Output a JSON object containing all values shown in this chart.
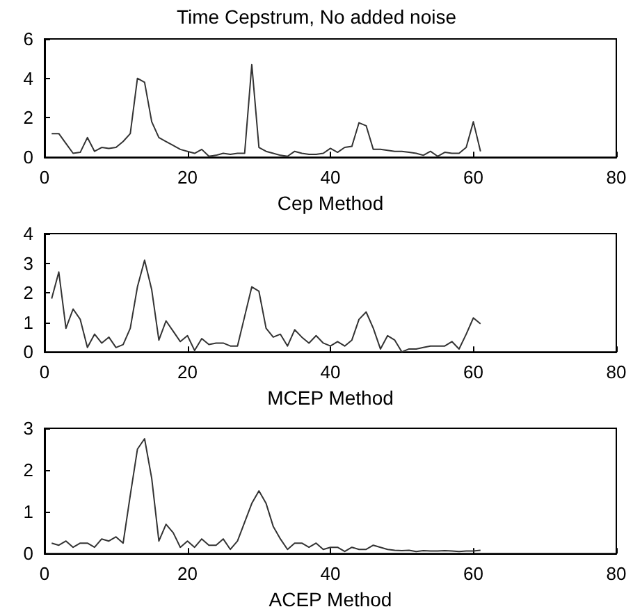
{
  "chart_data": [
    {
      "type": "line",
      "title": "Time Cepstrum, No added noise",
      "xlabel": "Cep Method",
      "color": "#333333",
      "xlim": [
        0,
        80
      ],
      "ylim": [
        0,
        6
      ],
      "xticks": [
        0,
        20,
        40,
        60,
        80
      ],
      "yticks": [
        0,
        2,
        4,
        6
      ],
      "x": [
        1,
        2,
        3,
        4,
        5,
        6,
        7,
        8,
        9,
        10,
        11,
        12,
        13,
        14,
        15,
        16,
        17,
        18,
        19,
        20,
        21,
        22,
        23,
        24,
        25,
        26,
        27,
        28,
        29,
        30,
        31,
        32,
        33,
        34,
        35,
        36,
        37,
        38,
        39,
        40,
        41,
        42,
        43,
        44,
        45,
        46,
        47,
        48,
        49,
        50,
        51,
        52,
        53,
        54,
        55,
        56,
        57,
        58,
        59,
        60,
        61
      ],
      "values": [
        1.2,
        1.2,
        0.7,
        0.2,
        0.25,
        1.0,
        0.3,
        0.5,
        0.45,
        0.5,
        0.8,
        1.2,
        4.0,
        3.8,
        1.8,
        1.0,
        0.8,
        0.6,
        0.4,
        0.3,
        0.2,
        0.4,
        0.05,
        0.1,
        0.2,
        0.15,
        0.2,
        0.2,
        4.7,
        0.5,
        0.3,
        0.2,
        0.1,
        0.05,
        0.3,
        0.2,
        0.15,
        0.15,
        0.2,
        0.45,
        0.25,
        0.5,
        0.55,
        1.75,
        1.6,
        0.4,
        0.4,
        0.35,
        0.3,
        0.3,
        0.25,
        0.2,
        0.1,
        0.3,
        0.05,
        0.25,
        0.2,
        0.2,
        0.5,
        1.8,
        0.3
      ]
    },
    {
      "type": "line",
      "xlabel": "MCEP Method",
      "color": "#333333",
      "xlim": [
        0,
        80
      ],
      "ylim": [
        0,
        4
      ],
      "xticks": [
        0,
        20,
        40,
        60,
        80
      ],
      "yticks": [
        0,
        1,
        2,
        3,
        4
      ],
      "x": [
        1,
        2,
        3,
        4,
        5,
        6,
        7,
        8,
        9,
        10,
        11,
        12,
        13,
        14,
        15,
        16,
        17,
        18,
        19,
        20,
        21,
        22,
        23,
        24,
        25,
        26,
        27,
        28,
        29,
        30,
        31,
        32,
        33,
        34,
        35,
        36,
        37,
        38,
        39,
        40,
        41,
        42,
        43,
        44,
        45,
        46,
        47,
        48,
        49,
        50,
        51,
        52,
        53,
        54,
        55,
        56,
        57,
        58,
        59,
        60,
        61
      ],
      "values": [
        1.8,
        2.7,
        0.8,
        1.45,
        1.1,
        0.15,
        0.6,
        0.3,
        0.5,
        0.15,
        0.25,
        0.8,
        2.2,
        3.1,
        2.1,
        0.4,
        1.05,
        0.7,
        0.35,
        0.55,
        0.05,
        0.45,
        0.25,
        0.3,
        0.3,
        0.2,
        0.2,
        1.2,
        2.2,
        2.05,
        0.8,
        0.5,
        0.6,
        0.2,
        0.75,
        0.5,
        0.3,
        0.55,
        0.3,
        0.2,
        0.35,
        0.2,
        0.4,
        1.1,
        1.35,
        0.8,
        0.1,
        0.55,
        0.4,
        0.0,
        0.1,
        0.1,
        0.15,
        0.2,
        0.2,
        0.2,
        0.35,
        0.1,
        0.6,
        1.15,
        0.95
      ]
    },
    {
      "type": "line",
      "xlabel": "ACEP Method",
      "color": "#333333",
      "xlim": [
        0,
        80
      ],
      "ylim": [
        0,
        3
      ],
      "xticks": [
        0,
        20,
        40,
        60,
        80
      ],
      "yticks": [
        0,
        1,
        2,
        3
      ],
      "x": [
        1,
        2,
        3,
        4,
        5,
        6,
        7,
        8,
        9,
        10,
        11,
        12,
        13,
        14,
        15,
        16,
        17,
        18,
        19,
        20,
        21,
        22,
        23,
        24,
        25,
        26,
        27,
        28,
        29,
        30,
        31,
        32,
        33,
        34,
        35,
        36,
        37,
        38,
        39,
        40,
        41,
        42,
        43,
        44,
        45,
        46,
        47,
        48,
        49,
        50,
        51,
        52,
        53,
        54,
        55,
        56,
        57,
        58,
        59,
        60,
        61
      ],
      "values": [
        0.25,
        0.2,
        0.3,
        0.15,
        0.25,
        0.25,
        0.15,
        0.35,
        0.3,
        0.4,
        0.25,
        1.4,
        2.5,
        2.75,
        1.8,
        0.3,
        0.7,
        0.5,
        0.15,
        0.3,
        0.15,
        0.35,
        0.2,
        0.2,
        0.35,
        0.1,
        0.3,
        0.75,
        1.2,
        1.5,
        1.2,
        0.65,
        0.35,
        0.1,
        0.25,
        0.25,
        0.15,
        0.25,
        0.1,
        0.15,
        0.15,
        0.05,
        0.15,
        0.1,
        0.1,
        0.2,
        0.15,
        0.1,
        0.08,
        0.07,
        0.08,
        0.05,
        0.07,
        0.06,
        0.06,
        0.07,
        0.06,
        0.05,
        0.06,
        0.06,
        0.08
      ]
    }
  ]
}
